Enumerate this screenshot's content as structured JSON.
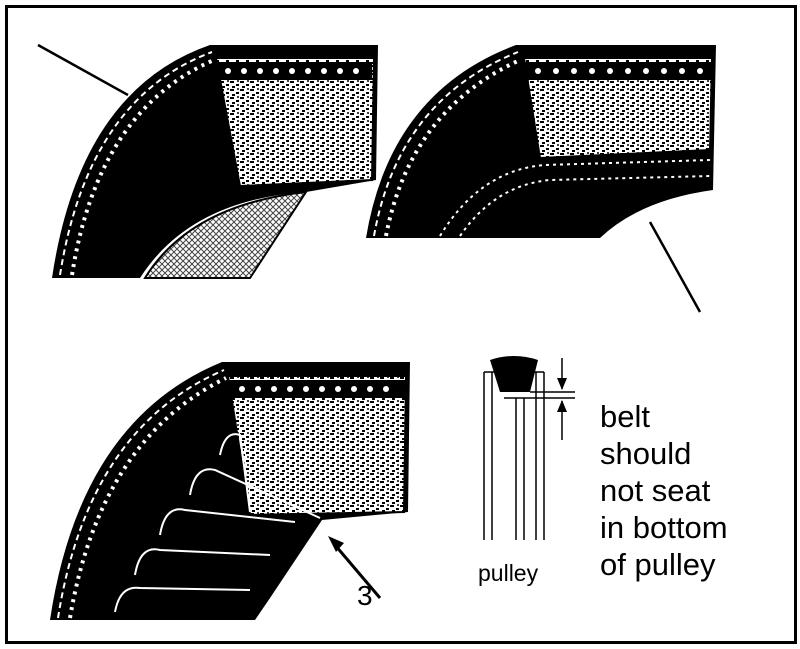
{
  "labels": {
    "callout_3": "3",
    "pulley": "pulley",
    "note_lines": [
      "belt",
      "should",
      "not seat",
      "in bottom",
      "of pulley"
    ]
  },
  "colors": {
    "ink": "#000000",
    "paper": "#ffffff",
    "fabric": "#6e6e6e"
  },
  "icons": [
    "arrow-icon",
    "dimension-arrow-icon"
  ]
}
